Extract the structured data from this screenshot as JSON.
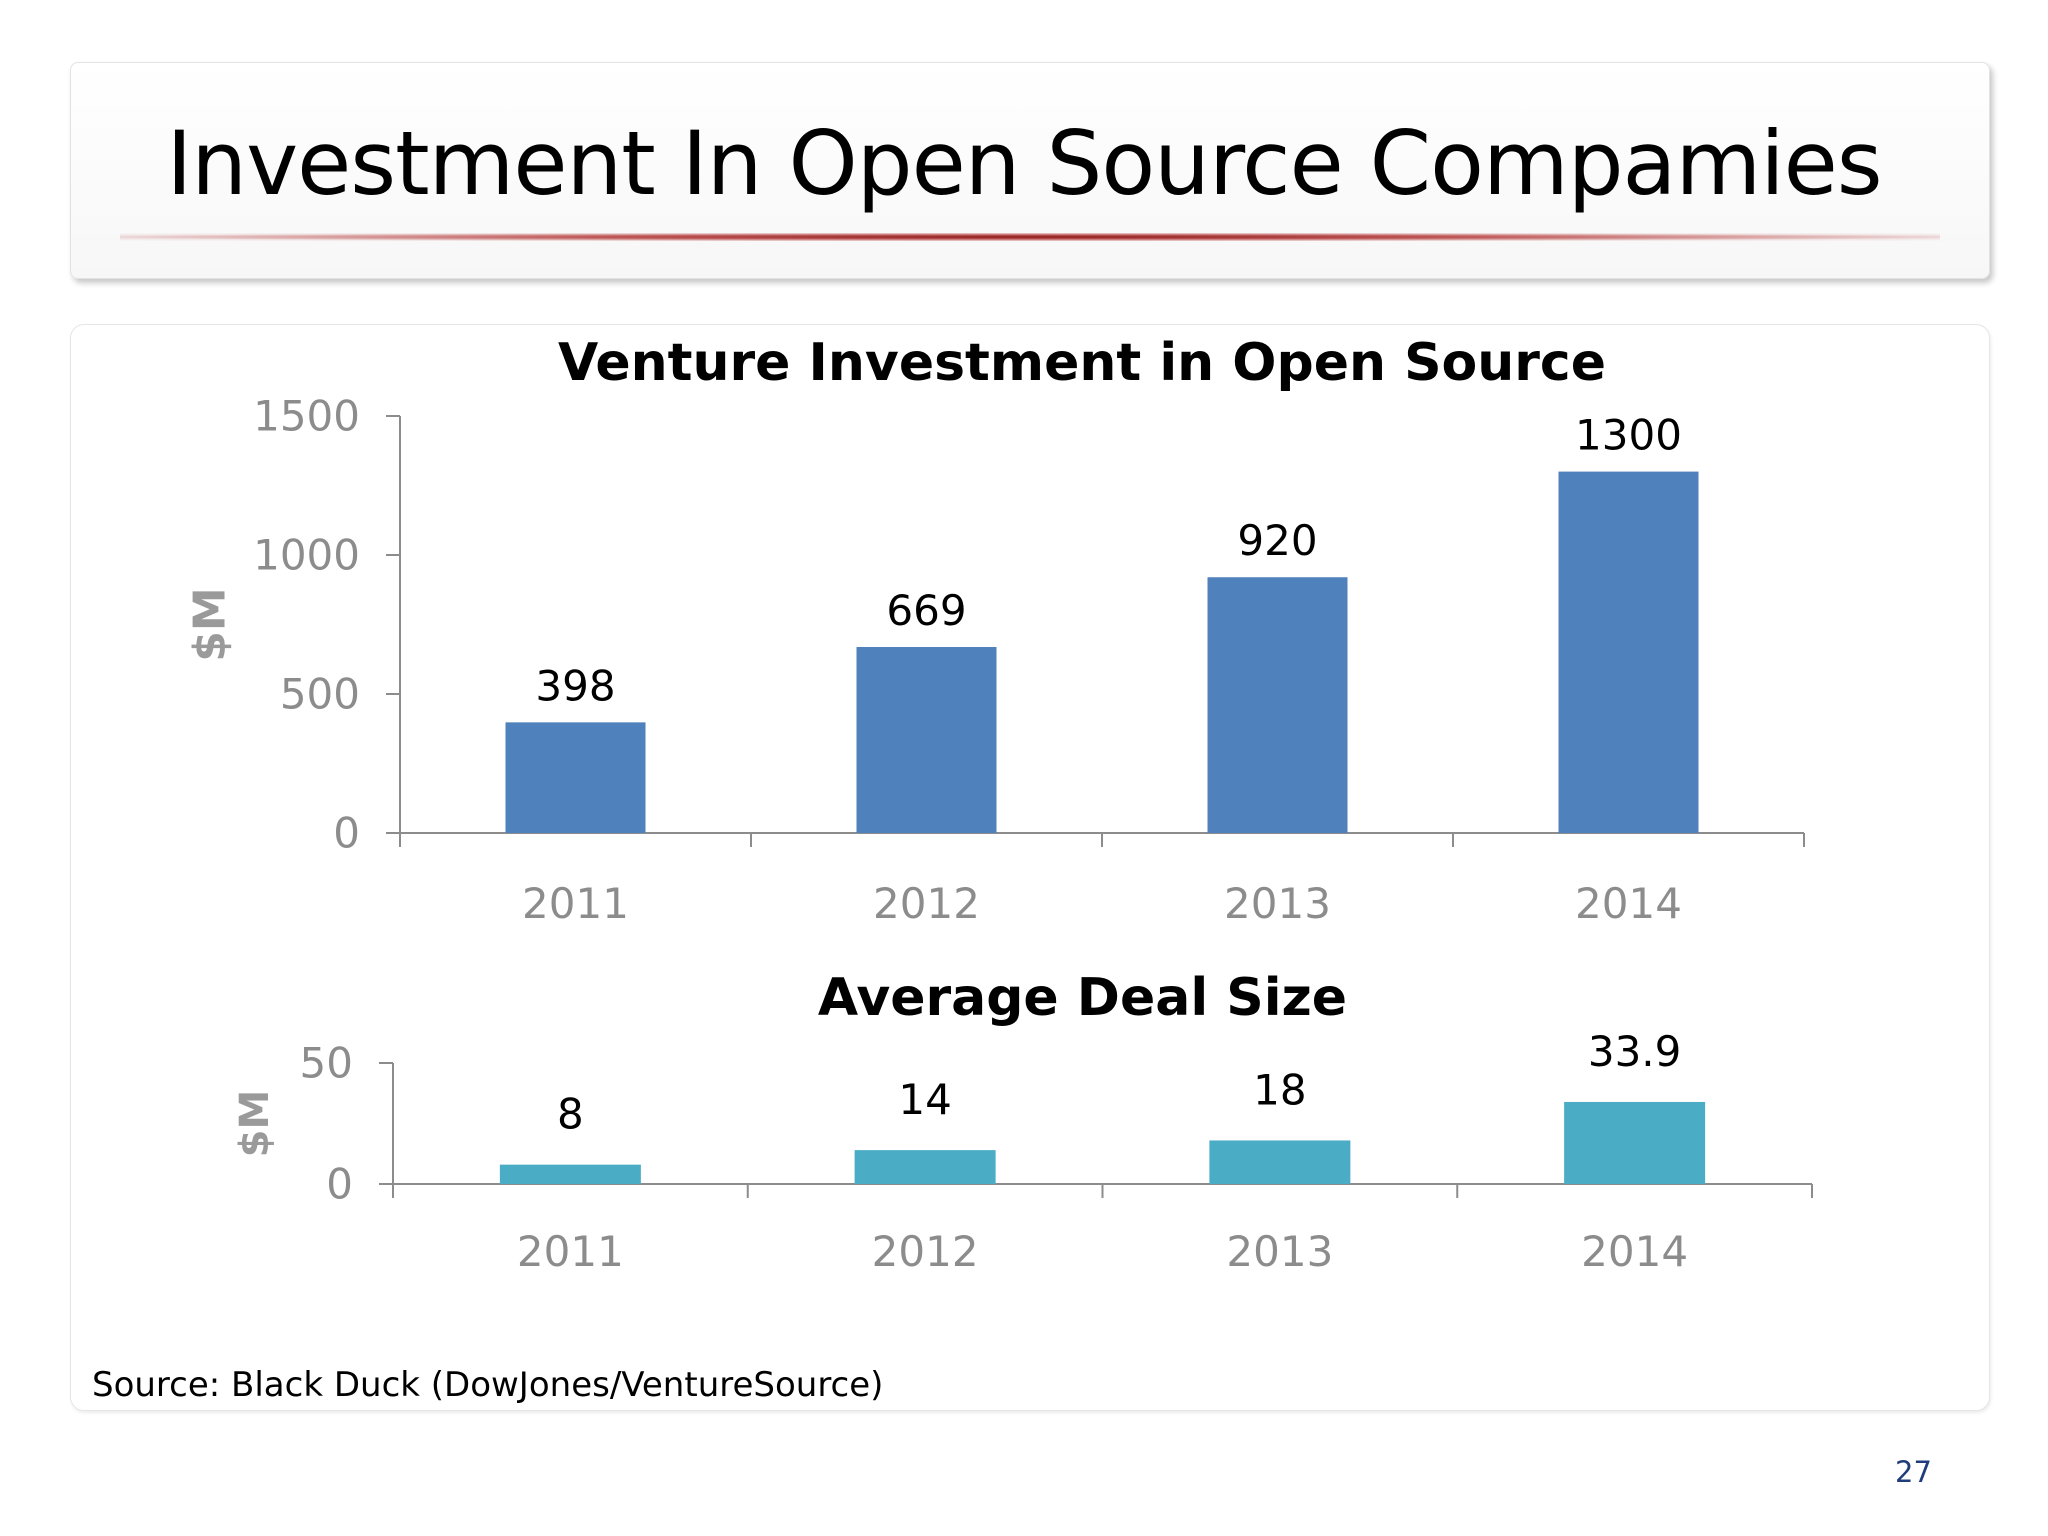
{
  "slide": {
    "title": "Investment In Open Source Compamies",
    "source": "Source: Black Duck (DowJones/VentureSource)",
    "page_number": "27"
  },
  "colors": {
    "bar_primary": "#4f81bd",
    "bar_secondary": "#4bacc6",
    "axis": "#8c8c8c",
    "title_rule": "#8a1a1a",
    "page_number": "#1f3d7a"
  },
  "chart_data": [
    {
      "type": "bar",
      "title": "Venture Investment in Open Source",
      "ylabel": "$M",
      "xlabel": "",
      "categories": [
        "2011",
        "2012",
        "2013",
        "2014"
      ],
      "values": [
        398,
        669,
        920,
        1300
      ],
      "data_labels": [
        "398",
        "669",
        "920",
        "1300"
      ],
      "ylim": [
        0,
        1500
      ],
      "yticks": [
        "0",
        "500",
        "1000",
        "1500"
      ],
      "grid": false,
      "color": "#4f81bd"
    },
    {
      "type": "bar",
      "title": "Average Deal Size",
      "ylabel": "$M",
      "xlabel": "",
      "categories": [
        "2011",
        "2012",
        "2013",
        "2014"
      ],
      "values": [
        8,
        14,
        18,
        33.9
      ],
      "data_labels": [
        "8",
        "14",
        "18",
        "33.9"
      ],
      "ylim": [
        0,
        50
      ],
      "yticks": [
        "0",
        "50"
      ],
      "grid": false,
      "color": "#4bacc6"
    }
  ]
}
